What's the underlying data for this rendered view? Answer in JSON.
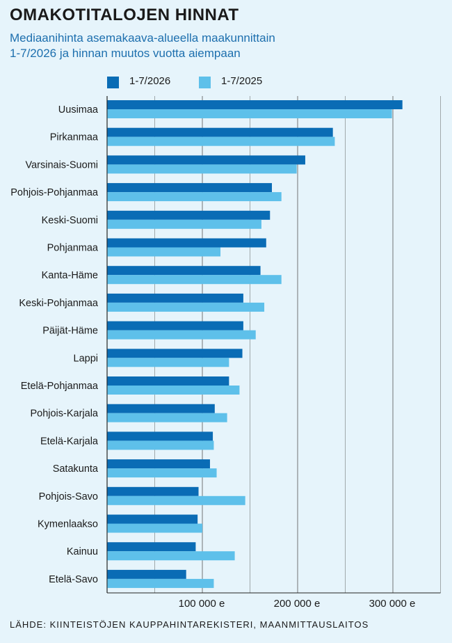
{
  "title": "OMAKOTITALOJEN HINNAT",
  "subtitle": "Mediaanihinta asemakaava-alueella maakunnittain\n 1-7/2026 ja hinnan muutos vuotta aiempaan",
  "source": "LÄHDE: KIINTEISTÖJEN KAUPPAHINTAREKISTERI, MAANMITTAUSLAITOS",
  "colors": {
    "series_2026": "#0a6cb5",
    "series_2025": "#5ec0ea",
    "grid": "#555555"
  },
  "chart_data": {
    "type": "bar",
    "orientation": "horizontal",
    "categories": [
      "Uusimaa",
      "Pirkanmaa",
      "Varsinais-Suomi",
      "Pohjois-Pohjanmaa",
      "Keski-Suomi",
      "Pohjanmaa",
      "Kanta-Häme",
      "Keski-Pohjanmaa",
      "Päijät-Häme",
      "Lappi",
      "Etelä-Pohjanmaa",
      "Pohjois-Karjala",
      "Etelä-Karjala",
      "Satakunta",
      "Pohjois-Savo",
      "Kymenlaakso",
      "Kainuu",
      "Etelä-Savo"
    ],
    "series": [
      {
        "name": "1-7/2026",
        "values": [
          310000,
          237000,
          208000,
          173000,
          171000,
          167000,
          161000,
          143000,
          143000,
          142000,
          128000,
          113000,
          111000,
          108000,
          96000,
          95000,
          93000,
          83000
        ]
      },
      {
        "name": "1-7/2025",
        "values": [
          299000,
          239000,
          199000,
          183000,
          162000,
          119000,
          183000,
          165000,
          156000,
          128000,
          139000,
          126000,
          112000,
          115000,
          145000,
          100000,
          134000,
          112000
        ]
      }
    ],
    "xlim": [
      0,
      350000
    ],
    "xticks": [
      100000,
      200000,
      300000
    ],
    "xtick_labels": [
      "100 000 e",
      "200 000 e",
      "300 000 e"
    ],
    "grid": true,
    "legend_position": "top"
  }
}
